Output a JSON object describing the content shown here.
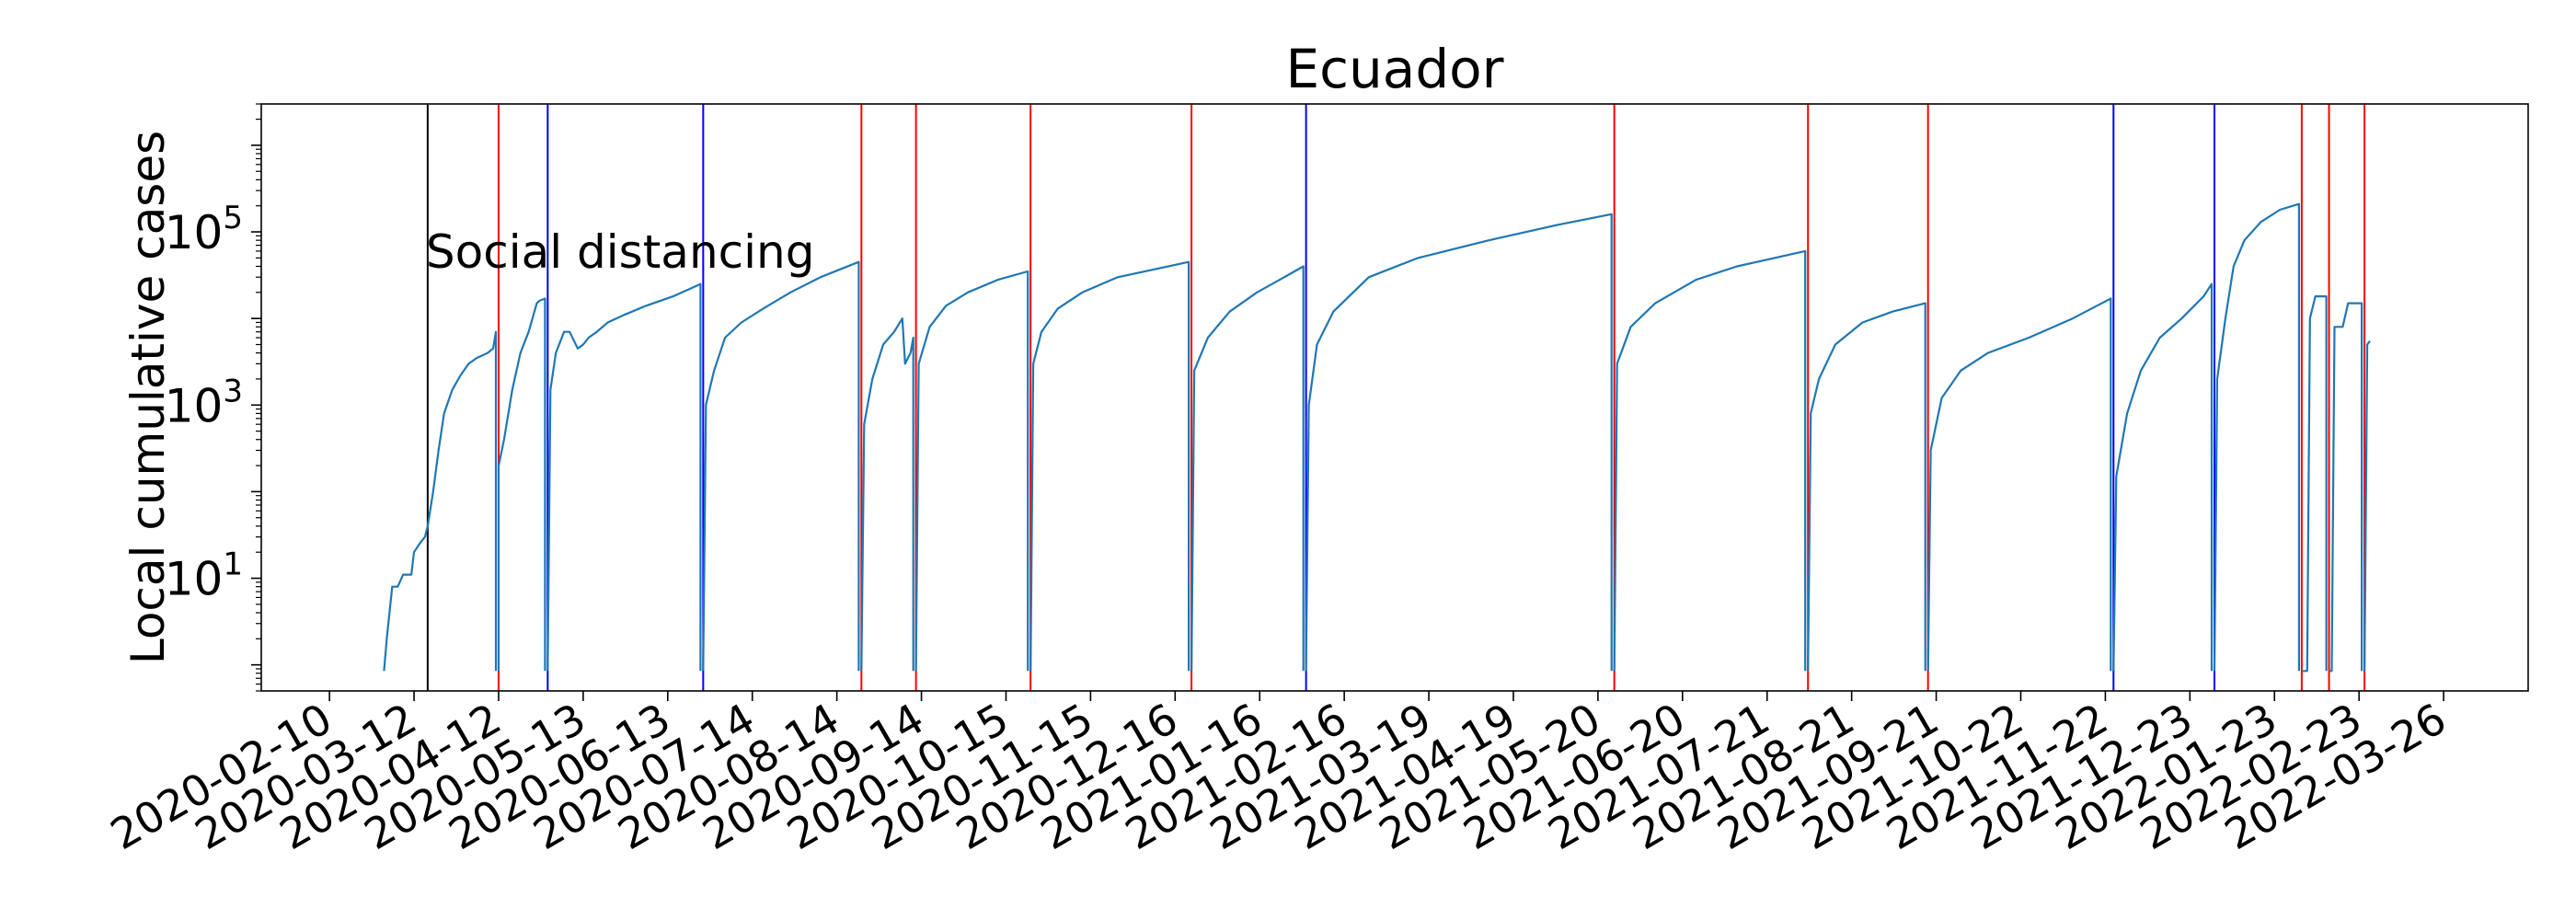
{
  "chart_data": {
    "type": "line",
    "title": "Ecuador",
    "xlabel": "",
    "ylabel": "Local cumulative cases",
    "yscale": "log",
    "ylim": [
      0.5,
      3000000
    ],
    "xlim": [
      "2020-01-16",
      "2022-04-26"
    ],
    "grid": false,
    "legend": "none",
    "x_ticks": [
      "2020-02-10",
      "2020-03-12",
      "2020-04-12",
      "2020-05-13",
      "2020-06-13",
      "2020-07-14",
      "2020-08-14",
      "2020-09-14",
      "2020-10-15",
      "2020-11-15",
      "2020-12-16",
      "2021-01-16",
      "2021-02-16",
      "2021-03-19",
      "2021-04-19",
      "2021-05-20",
      "2021-06-20",
      "2021-07-21",
      "2021-08-21",
      "2021-09-21",
      "2021-10-22",
      "2021-11-22",
      "2021-12-23",
      "2022-01-23",
      "2022-02-23",
      "2022-03-26"
    ],
    "y_ticks": [
      {
        "value": 10,
        "base": "10",
        "exp": "1"
      },
      {
        "value": 1000,
        "base": "10",
        "exp": "3"
      },
      {
        "value": 100000,
        "base": "10",
        "exp": "5"
      }
    ],
    "annotations": [
      {
        "text": "Social distancing",
        "date": "2020-03-17",
        "value": 60000
      }
    ],
    "vlines": [
      {
        "date": "2020-03-17",
        "color": "#000000"
      },
      {
        "date": "2020-04-12",
        "color": "#ff0000"
      },
      {
        "date": "2020-04-30",
        "color": "#0000ff"
      },
      {
        "date": "2020-06-26",
        "color": "#0000ff"
      },
      {
        "date": "2020-08-23",
        "color": "#ff0000"
      },
      {
        "date": "2020-09-12",
        "color": "#ff0000"
      },
      {
        "date": "2020-10-24",
        "color": "#ff0000"
      },
      {
        "date": "2020-12-22",
        "color": "#ff0000"
      },
      {
        "date": "2021-02-02",
        "color": "#0000ff"
      },
      {
        "date": "2021-05-26",
        "color": "#ff0000"
      },
      {
        "date": "2021-08-05",
        "color": "#ff0000"
      },
      {
        "date": "2021-09-18",
        "color": "#ff0000"
      },
      {
        "date": "2021-11-25",
        "color": "#0000ff"
      },
      {
        "date": "2022-01-01",
        "color": "#0000ff"
      },
      {
        "date": "2022-02-02",
        "color": "#ff0000"
      },
      {
        "date": "2022-02-12",
        "color": "#ff0000"
      },
      {
        "date": "2022-02-25",
        "color": "#ff0000"
      }
    ],
    "series": [
      {
        "color": "#1f77b4",
        "segments": [
          [
            [
              "2020-03-01",
              0.85
            ],
            [
              "2020-03-02",
              2
            ],
            [
              "2020-03-04",
              8
            ],
            [
              "2020-03-06",
              8
            ],
            [
              "2020-03-08",
              11
            ],
            [
              "2020-03-11",
              11
            ],
            [
              "2020-03-12",
              20
            ],
            [
              "2020-03-14",
              25
            ],
            [
              "2020-03-16",
              30
            ],
            [
              "2020-03-17",
              40
            ],
            [
              "2020-03-19",
              100
            ],
            [
              "2020-03-21",
              300
            ],
            [
              "2020-03-23",
              800
            ],
            [
              "2020-03-26",
              1500
            ],
            [
              "2020-03-29",
              2200
            ],
            [
              "2020-04-01",
              3000
            ],
            [
              "2020-04-04",
              3500
            ],
            [
              "2020-04-08",
              4000
            ],
            [
              "2020-04-10",
              4500
            ],
            [
              "2020-04-11",
              7000
            ],
            [
              "2020-04-11",
              0.85
            ]
          ],
          [
            [
              "2020-04-12",
              0.85
            ],
            [
              "2020-04-12",
              200
            ],
            [
              "2020-04-14",
              400
            ],
            [
              "2020-04-17",
              1500
            ],
            [
              "2020-04-20",
              4000
            ],
            [
              "2020-04-23",
              7000
            ],
            [
              "2020-04-26",
              15000
            ],
            [
              "2020-04-27",
              16000
            ],
            [
              "2020-04-29",
              17000
            ],
            [
              "2020-04-29",
              0.85
            ]
          ],
          [
            [
              "2020-04-30",
              0.85
            ],
            [
              "2020-05-01",
              1500
            ],
            [
              "2020-05-03",
              4000
            ],
            [
              "2020-05-06",
              7000
            ],
            [
              "2020-05-08",
              7000
            ],
            [
              "2020-05-11",
              4500
            ],
            [
              "2020-05-13",
              5000
            ],
            [
              "2020-05-15",
              6000
            ],
            [
              "2020-05-18",
              7000
            ],
            [
              "2020-05-22",
              9000
            ],
            [
              "2020-05-28",
              11000
            ],
            [
              "2020-06-05",
              14000
            ],
            [
              "2020-06-15",
              18000
            ],
            [
              "2020-06-25",
              25000
            ],
            [
              "2020-06-25",
              0.85
            ]
          ],
          [
            [
              "2020-06-26",
              0.85
            ],
            [
              "2020-06-27",
              1000
            ],
            [
              "2020-06-30",
              2500
            ],
            [
              "2020-07-04",
              6000
            ],
            [
              "2020-07-10",
              9000
            ],
            [
              "2020-07-18",
              13000
            ],
            [
              "2020-07-28",
              20000
            ],
            [
              "2020-08-08",
              30000
            ],
            [
              "2020-08-22",
              45000
            ],
            [
              "2020-08-22",
              0.85
            ]
          ],
          [
            [
              "2020-08-23",
              0.85
            ],
            [
              "2020-08-24",
              600
            ],
            [
              "2020-08-27",
              2000
            ],
            [
              "2020-08-31",
              5000
            ],
            [
              "2020-09-04",
              7000
            ],
            [
              "2020-09-07",
              10000
            ],
            [
              "2020-09-08",
              3000
            ],
            [
              "2020-09-10",
              4000
            ],
            [
              "2020-09-11",
              6000
            ],
            [
              "2020-09-11",
              0.85
            ]
          ],
          [
            [
              "2020-09-12",
              0.85
            ],
            [
              "2020-09-13",
              3000
            ],
            [
              "2020-09-17",
              8000
            ],
            [
              "2020-09-23",
              14000
            ],
            [
              "2020-10-01",
              20000
            ],
            [
              "2020-10-12",
              28000
            ],
            [
              "2020-10-23",
              35000
            ],
            [
              "2020-10-23",
              0.85
            ]
          ],
          [
            [
              "2020-10-24",
              0.85
            ],
            [
              "2020-10-25",
              3000
            ],
            [
              "2020-10-28",
              7000
            ],
            [
              "2020-11-03",
              13000
            ],
            [
              "2020-11-12",
              20000
            ],
            [
              "2020-11-25",
              30000
            ],
            [
              "2020-12-21",
              45000
            ],
            [
              "2020-12-21",
              0.85
            ]
          ],
          [
            [
              "2020-12-22",
              0.85
            ],
            [
              "2020-12-23",
              2500
            ],
            [
              "2020-12-28",
              6000
            ],
            [
              "2021-01-05",
              12000
            ],
            [
              "2021-01-15",
              20000
            ],
            [
              "2021-01-25",
              30000
            ],
            [
              "2021-02-01",
              40000
            ],
            [
              "2021-02-01",
              0.85
            ]
          ],
          [
            [
              "2021-02-02",
              0.85
            ],
            [
              "2021-02-03",
              1000
            ],
            [
              "2021-02-06",
              5000
            ],
            [
              "2021-02-12",
              12000
            ],
            [
              "2021-02-25",
              30000
            ],
            [
              "2021-03-15",
              50000
            ],
            [
              "2021-04-10",
              80000
            ],
            [
              "2021-05-05",
              120000
            ],
            [
              "2021-05-25",
              160000
            ],
            [
              "2021-05-25",
              0.85
            ]
          ],
          [
            [
              "2021-05-26",
              0.85
            ],
            [
              "2021-05-27",
              3000
            ],
            [
              "2021-06-01",
              8000
            ],
            [
              "2021-06-10",
              15000
            ],
            [
              "2021-06-25",
              28000
            ],
            [
              "2021-07-10",
              40000
            ],
            [
              "2021-08-04",
              60000
            ],
            [
              "2021-08-04",
              0.85
            ]
          ],
          [
            [
              "2021-08-05",
              0.85
            ],
            [
              "2021-08-06",
              800
            ],
            [
              "2021-08-09",
              2000
            ],
            [
              "2021-08-15",
              5000
            ],
            [
              "2021-08-25",
              9000
            ],
            [
              "2021-09-05",
              12000
            ],
            [
              "2021-09-17",
              15000
            ],
            [
              "2021-09-17",
              0.85
            ]
          ],
          [
            [
              "2021-09-18",
              0.85
            ],
            [
              "2021-09-19",
              300
            ],
            [
              "2021-09-23",
              1200
            ],
            [
              "2021-09-30",
              2500
            ],
            [
              "2021-10-10",
              4000
            ],
            [
              "2021-10-25",
              6000
            ],
            [
              "2021-11-10",
              10000
            ],
            [
              "2021-11-24",
              17000
            ],
            [
              "2021-11-24",
              0.85
            ]
          ],
          [
            [
              "2021-11-25",
              0.85
            ],
            [
              "2021-11-26",
              150
            ],
            [
              "2021-11-30",
              800
            ],
            [
              "2021-12-05",
              2500
            ],
            [
              "2021-12-12",
              6000
            ],
            [
              "2021-12-20",
              10000
            ],
            [
              "2021-12-28",
              18000
            ],
            [
              "2021-12-31",
              25000
            ],
            [
              "2021-12-31",
              0.85
            ]
          ],
          [
            [
              "2022-01-01",
              0.85
            ],
            [
              "2022-01-02",
              2000
            ],
            [
              "2022-01-05",
              10000
            ],
            [
              "2022-01-08",
              40000
            ],
            [
              "2022-01-12",
              80000
            ],
            [
              "2022-01-18",
              130000
            ],
            [
              "2022-01-25",
              180000
            ],
            [
              "2022-02-01",
              210000
            ],
            [
              "2022-02-01",
              0.85
            ]
          ],
          [
            [
              "2022-02-02",
              0.85
            ],
            [
              "2022-02-04",
              0.85
            ],
            [
              "2022-02-05",
              10000
            ],
            [
              "2022-02-07",
              18000
            ],
            [
              "2022-02-11",
              18000
            ],
            [
              "2022-02-11",
              0.85
            ]
          ],
          [
            [
              "2022-02-12",
              0.85
            ],
            [
              "2022-02-13",
              0.85
            ],
            [
              "2022-02-14",
              8000
            ],
            [
              "2022-02-17",
              8000
            ],
            [
              "2022-02-19",
              15000
            ],
            [
              "2022-02-24",
              15000
            ],
            [
              "2022-02-24",
              0.85
            ]
          ],
          [
            [
              "2022-02-25",
              0.85
            ],
            [
              "2022-02-26",
              5000
            ],
            [
              "2022-02-27",
              5500
            ]
          ]
        ]
      }
    ]
  }
}
